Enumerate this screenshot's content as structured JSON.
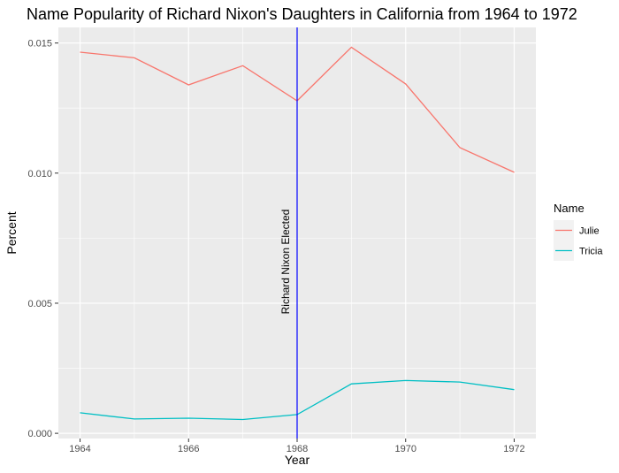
{
  "chart_data": {
    "type": "line",
    "title": "Name Popularity of Richard Nixon's Daughters in California from 1964 to 1972",
    "xlabel": "Year",
    "ylabel": "Percent",
    "x": [
      1964,
      1965,
      1966,
      1967,
      1968,
      1969,
      1970,
      1971,
      1972
    ],
    "xlim": [
      1963.6,
      1972.4
    ],
    "ylim": [
      -0.0002,
      0.0156
    ],
    "xticks": [
      1964,
      1966,
      1968,
      1970,
      1972
    ],
    "xtick_labels": [
      "1964",
      "1966",
      "1968",
      "1970",
      "1972"
    ],
    "yticks": [
      0.0,
      0.005,
      0.01,
      0.015
    ],
    "ytick_labels": [
      "0.000",
      "0.005",
      "0.010",
      "0.015"
    ],
    "grid": true,
    "legend": {
      "title": "Name",
      "position": "right"
    },
    "series": [
      {
        "name": "Julie",
        "color": "#F8766D",
        "values": [
          0.01465,
          0.01443,
          0.01339,
          0.01413,
          0.01278,
          0.01484,
          0.01343,
          0.01098,
          0.01003
        ]
      },
      {
        "name": "Tricia",
        "color": "#00BFC4",
        "values": [
          0.00079,
          0.00055,
          0.00058,
          0.00053,
          0.00072,
          0.0019,
          0.00203,
          0.00197,
          0.00168
        ]
      }
    ],
    "vline": {
      "x": 1968,
      "label": "Richard Nixon Elected",
      "color": "#0000FF"
    }
  }
}
